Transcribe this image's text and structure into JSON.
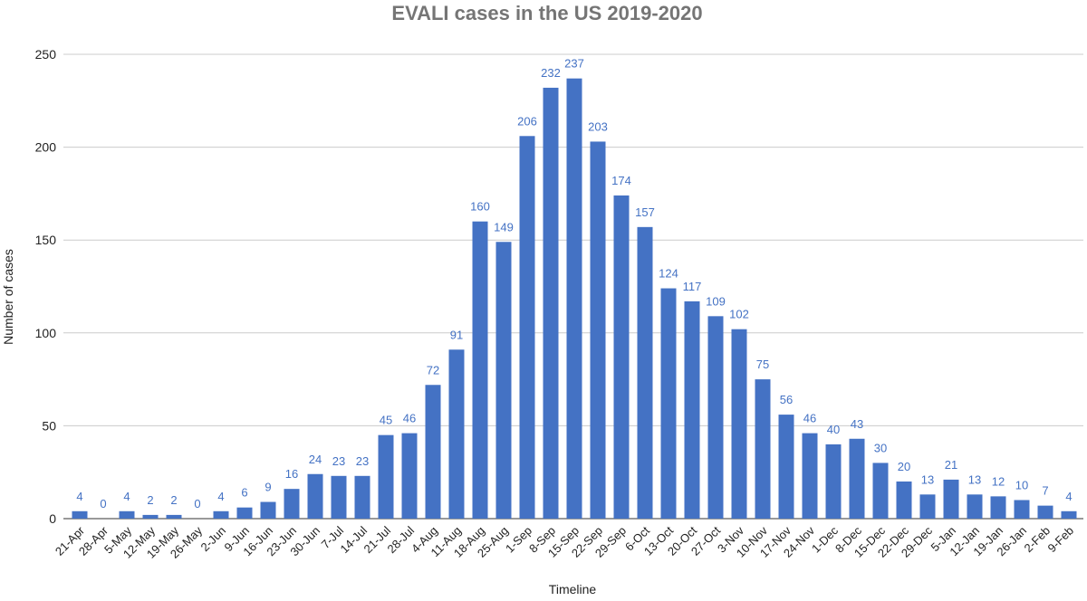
{
  "chart_data": {
    "type": "bar",
    "title": "EVALI cases in the US 2019-2020",
    "xlabel": "Timeline",
    "ylabel": "Number of cases",
    "ylim": [
      0,
      250
    ],
    "yticks": [
      0,
      50,
      100,
      150,
      200,
      250
    ],
    "grid": true,
    "bar_color": "#4472c4",
    "label_color": "#4472c4",
    "categories": [
      "21-Apr",
      "28-Apr",
      "5-May",
      "12-May",
      "19-May",
      "26-May",
      "2-Jun",
      "9-Jun",
      "16-Jun",
      "23-Jun",
      "30-Jun",
      "7-Jul",
      "14-Jul",
      "21-Jul",
      "28-Jul",
      "4-Aug",
      "11-Aug",
      "18-Aug",
      "25-Aug",
      "1-Sep",
      "8-Sep",
      "15-Sep",
      "22-Sep",
      "29-Sep",
      "6-Oct",
      "13-Oct",
      "20-Oct",
      "27-Oct",
      "3-Nov",
      "10-Nov",
      "17-Nov",
      "24-Nov",
      "1-Dec",
      "8-Dec",
      "15-Dec",
      "22-Dec",
      "29-Dec",
      "5-Jan",
      "12-Jan",
      "19-Jan",
      "26-Jan",
      "2-Feb",
      "9-Feb"
    ],
    "values": [
      4,
      0,
      4,
      2,
      2,
      0,
      4,
      6,
      9,
      16,
      24,
      23,
      23,
      45,
      46,
      72,
      91,
      160,
      149,
      206,
      232,
      237,
      203,
      174,
      157,
      124,
      117,
      109,
      102,
      75,
      56,
      46,
      40,
      43,
      30,
      20,
      13,
      21,
      13,
      12,
      10,
      7,
      4
    ]
  }
}
